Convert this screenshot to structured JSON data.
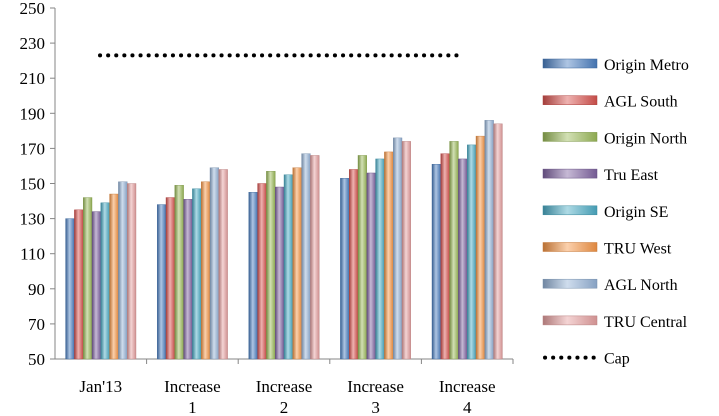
{
  "chart_data": {
    "type": "bar",
    "categories": [
      "Jan'13",
      "Increase 1",
      "Increase 2",
      "Increase 3",
      "Increase 4"
    ],
    "category_lines": [
      [
        "Jan'13"
      ],
      [
        "Increase",
        "1"
      ],
      [
        "Increase",
        "2"
      ],
      [
        "Increase",
        "3"
      ],
      [
        "Increase",
        "4"
      ]
    ],
    "ylim": [
      50,
      250
    ],
    "yticks": [
      50,
      70,
      90,
      110,
      130,
      150,
      170,
      190,
      210,
      230,
      250
    ],
    "grid": false,
    "legend_position": "right",
    "series": [
      {
        "name": "Origin Metro",
        "color": "#4a7fc1",
        "values": [
          130,
          138,
          145,
          153,
          161
        ]
      },
      {
        "name": "AGL South",
        "color": "#d9534f",
        "values": [
          135,
          142,
          150,
          158,
          167
        ]
      },
      {
        "name": "Origin North",
        "color": "#9bbb59",
        "values": [
          142,
          149,
          157,
          166,
          174
        ]
      },
      {
        "name": "Tru East",
        "color": "#8064a2",
        "values": [
          134,
          141,
          148,
          156,
          164
        ]
      },
      {
        "name": "Origin SE",
        "color": "#4bacc6",
        "values": [
          139,
          147,
          155,
          164,
          172
        ]
      },
      {
        "name": "TRU West",
        "color": "#f79646",
        "values": [
          144,
          151,
          159,
          168,
          177
        ]
      },
      {
        "name": "AGL North",
        "color": "#95b3d7",
        "values": [
          151,
          159,
          167,
          176,
          186
        ]
      },
      {
        "name": "TRU Central",
        "color": "#e6a0a0",
        "values": [
          150,
          158,
          166,
          174,
          184
        ]
      }
    ],
    "cap": {
      "name": "Cap",
      "value": 223
    }
  }
}
